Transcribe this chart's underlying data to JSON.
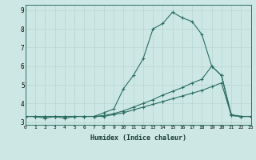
{
  "xlabel": "Humidex (Indice chaleur)",
  "ylabel": "",
  "bg_color": "#cde8e4",
  "grid_color_major": "#b8d4d0",
  "grid_color_minor": "#cde8e4",
  "line_color": "#2a6e62",
  "xlim": [
    0,
    23
  ],
  "ylim": [
    2.85,
    9.3
  ],
  "xticks": [
    0,
    1,
    2,
    3,
    4,
    5,
    6,
    7,
    8,
    9,
    10,
    11,
    12,
    13,
    14,
    15,
    16,
    17,
    18,
    19,
    20,
    21,
    22,
    23
  ],
  "yticks": [
    3,
    4,
    5,
    6,
    7,
    8,
    9
  ],
  "line1_x": [
    0,
    1,
    2,
    3,
    4,
    5,
    6,
    7,
    8,
    9,
    10,
    11,
    12,
    13,
    14,
    15,
    16,
    17,
    18,
    19,
    20,
    21,
    22,
    23
  ],
  "line1_y": [
    3.3,
    3.3,
    3.2,
    3.3,
    3.2,
    3.3,
    3.3,
    3.3,
    3.5,
    3.7,
    4.8,
    5.5,
    6.4,
    8.0,
    8.3,
    8.9,
    8.6,
    8.4,
    7.7,
    6.0,
    5.5,
    3.4,
    3.3,
    3.3
  ],
  "line2_x": [
    0,
    1,
    2,
    3,
    4,
    5,
    6,
    7,
    8,
    9,
    10,
    11,
    12,
    13,
    14,
    15,
    16,
    17,
    18,
    19,
    20,
    21,
    22,
    23
  ],
  "line2_y": [
    3.3,
    3.3,
    3.3,
    3.3,
    3.3,
    3.3,
    3.3,
    3.3,
    3.35,
    3.45,
    3.6,
    3.8,
    4.0,
    4.2,
    4.45,
    4.65,
    4.85,
    5.1,
    5.3,
    6.0,
    5.5,
    3.35,
    3.3,
    3.3
  ],
  "line3_x": [
    0,
    1,
    2,
    3,
    4,
    5,
    6,
    7,
    8,
    9,
    10,
    11,
    12,
    13,
    14,
    15,
    16,
    17,
    18,
    19,
    20,
    21,
    22,
    23
  ],
  "line3_y": [
    3.3,
    3.3,
    3.3,
    3.3,
    3.3,
    3.3,
    3.3,
    3.3,
    3.3,
    3.4,
    3.5,
    3.65,
    3.8,
    3.95,
    4.1,
    4.25,
    4.4,
    4.55,
    4.7,
    4.9,
    5.1,
    3.35,
    3.3,
    3.3
  ]
}
